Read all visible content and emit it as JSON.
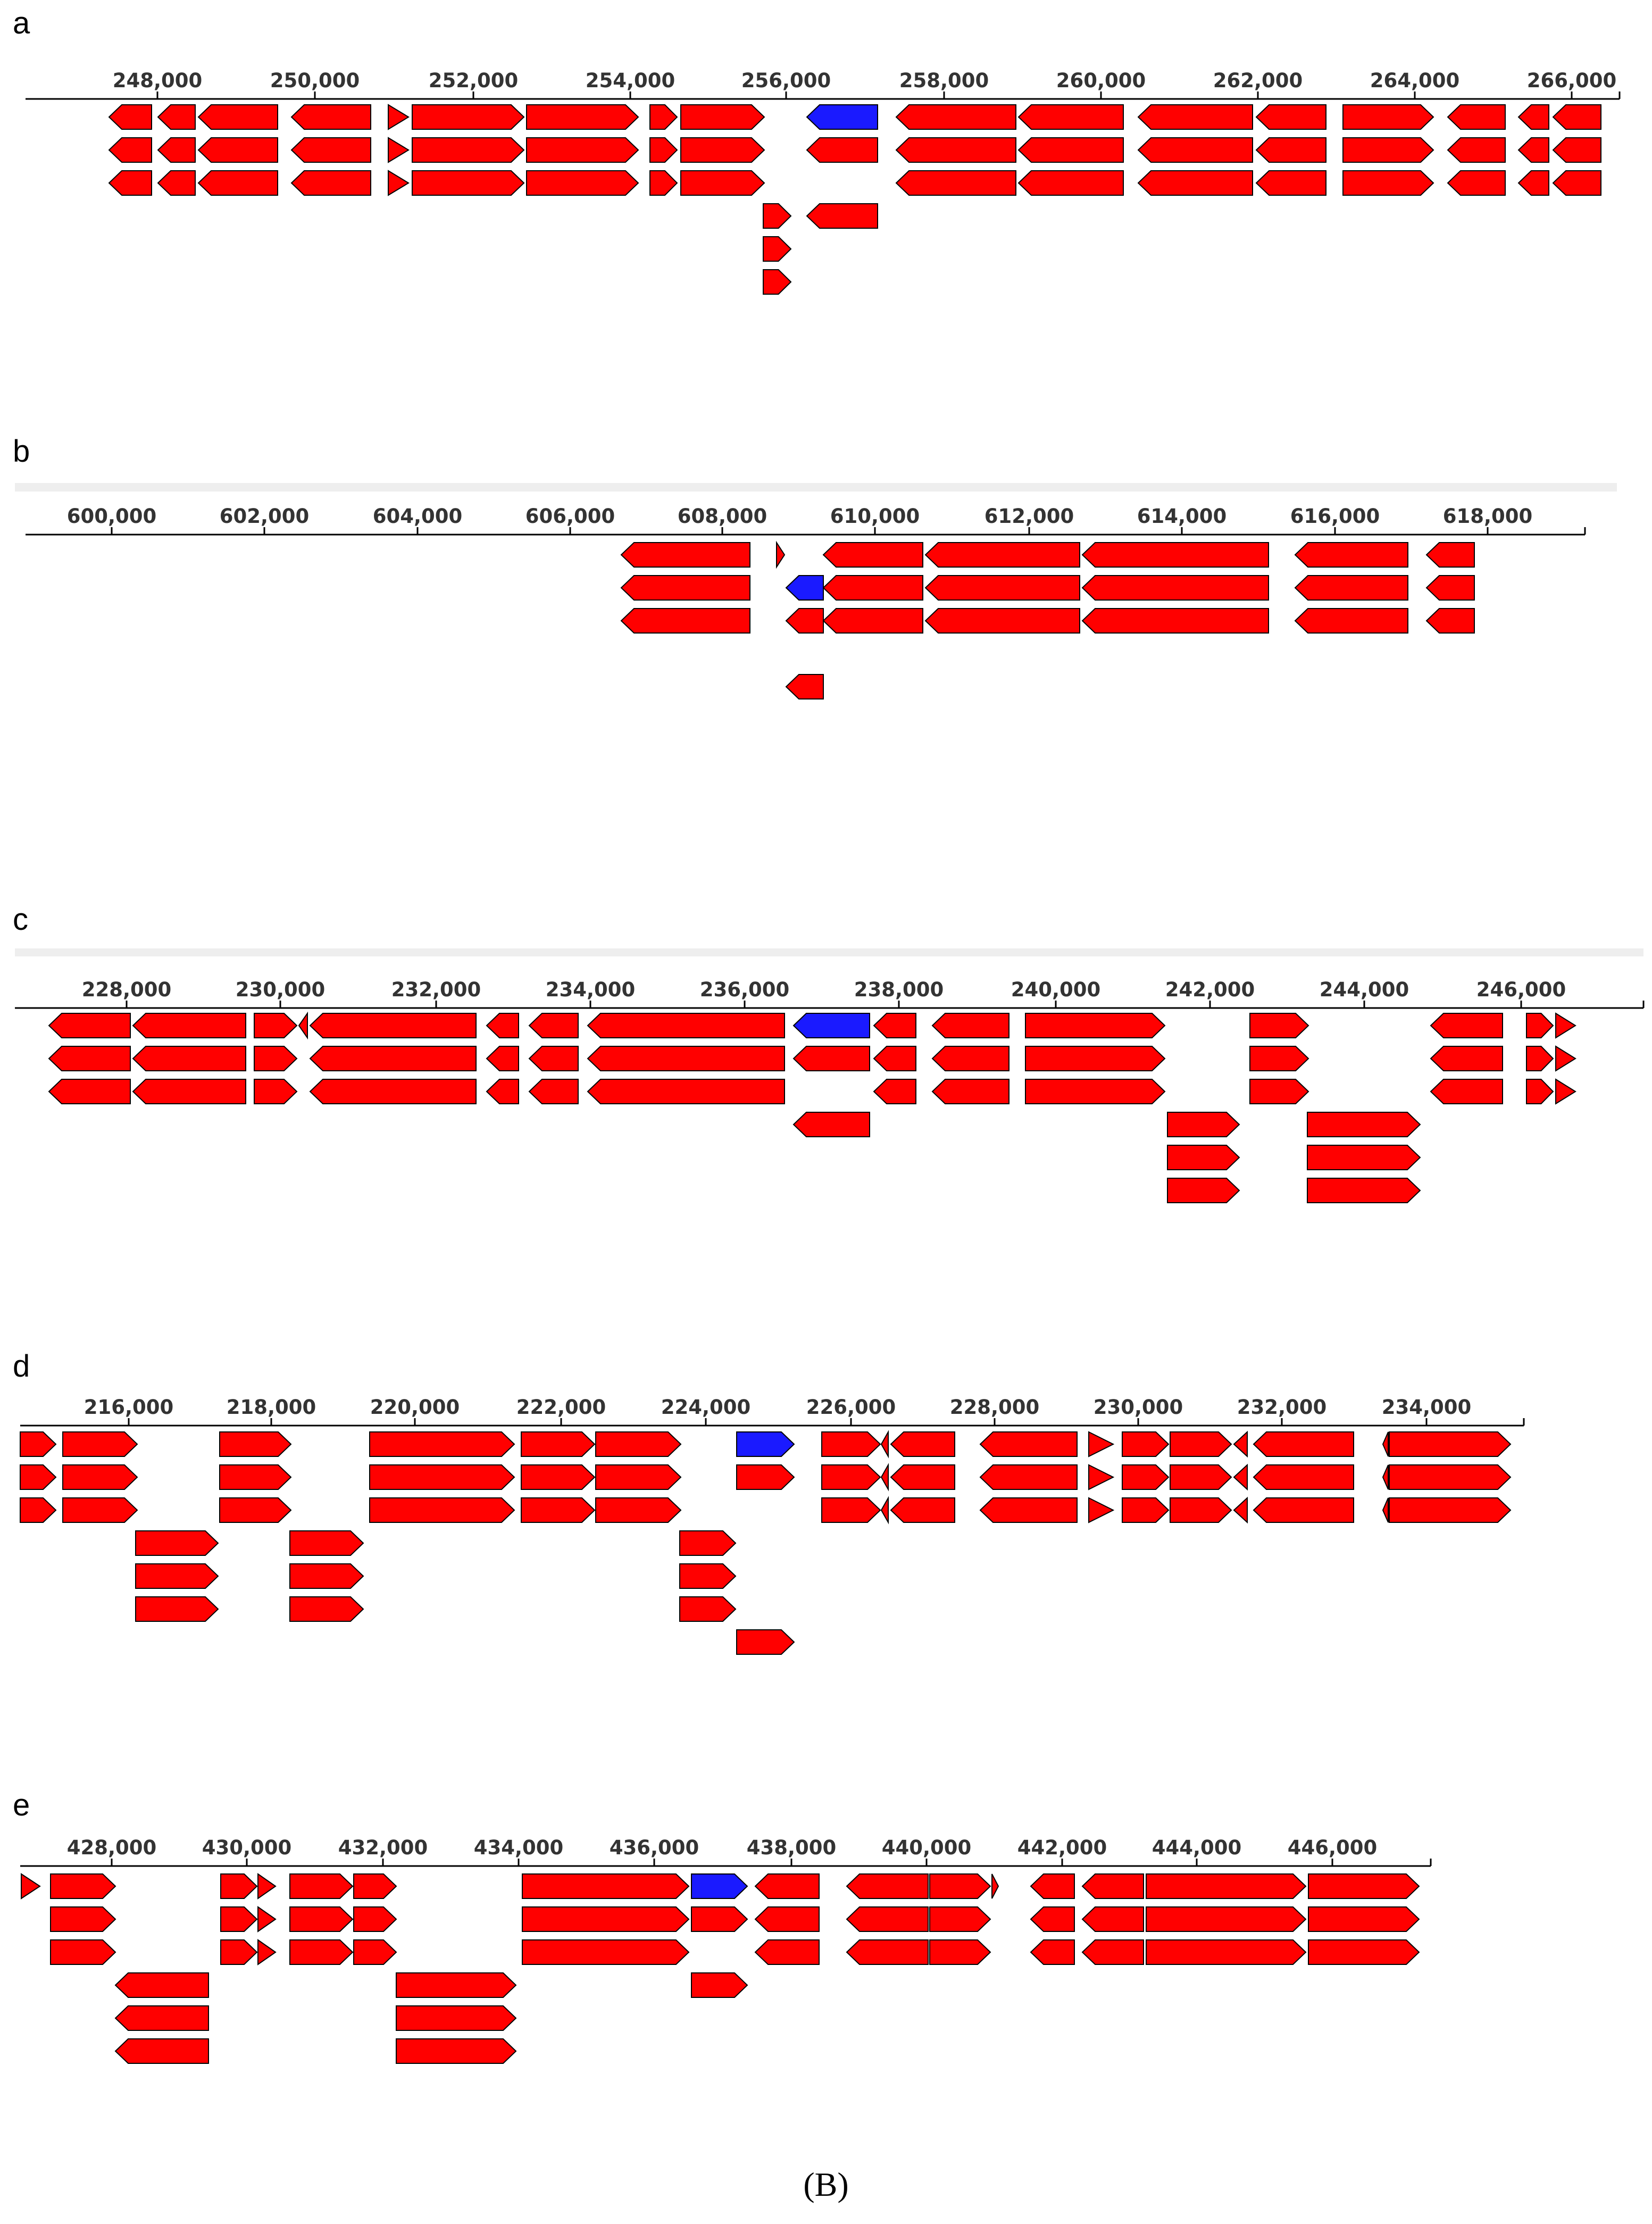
{
  "figure_caption": "(B)",
  "colors": {
    "gene": "#ff0000",
    "highlight": "#1a1aff",
    "outline": "#000000",
    "track": "#000000"
  },
  "panels": [
    {
      "label": "a",
      "ticks": [
        "248,000",
        "250,000",
        "252,000",
        "254,000",
        "256,000",
        "258,000",
        "260,000",
        "262,000",
        "264,000",
        "266,000"
      ],
      "tick_values": [
        248000,
        250000,
        252000,
        254000,
        256000,
        258000,
        260000,
        262000,
        264000,
        266000
      ]
    },
    {
      "label": "b",
      "ticks": [
        "600,000",
        "602,000",
        "604,000",
        "606,000",
        "608,000",
        "610,000",
        "612,000",
        "614,000",
        "616,000",
        "618,000"
      ],
      "tick_values": [
        600000,
        602000,
        604000,
        606000,
        608000,
        610000,
        612000,
        614000,
        616000,
        618000
      ]
    },
    {
      "label": "c",
      "ticks": [
        "228,000",
        "230,000",
        "232,000",
        "234,000",
        "236,000",
        "238,000",
        "240,000",
        "242,000",
        "244,000",
        "246,000"
      ],
      "tick_values": [
        228000,
        230000,
        232000,
        234000,
        236000,
        238000,
        240000,
        242000,
        244000,
        246000
      ]
    },
    {
      "label": "d",
      "ticks": [
        "216,000",
        "218,000",
        "220,000",
        "222,000",
        "224,000",
        "226,000",
        "228,000",
        "230,000",
        "232,000",
        "234,000"
      ],
      "tick_values": [
        216000,
        218000,
        220000,
        222000,
        224000,
        226000,
        228000,
        230000,
        232000,
        234000
      ]
    },
    {
      "label": "e",
      "ticks": [
        "428,000",
        "430,000",
        "432,000",
        "434,000",
        "436,000",
        "438,000",
        "440,000",
        "442,000",
        "444,000",
        "446,000"
      ],
      "tick_values": [
        428000,
        430000,
        432000,
        434000,
        436000,
        438000,
        440000,
        442000,
        444000,
        446000
      ]
    }
  ]
}
